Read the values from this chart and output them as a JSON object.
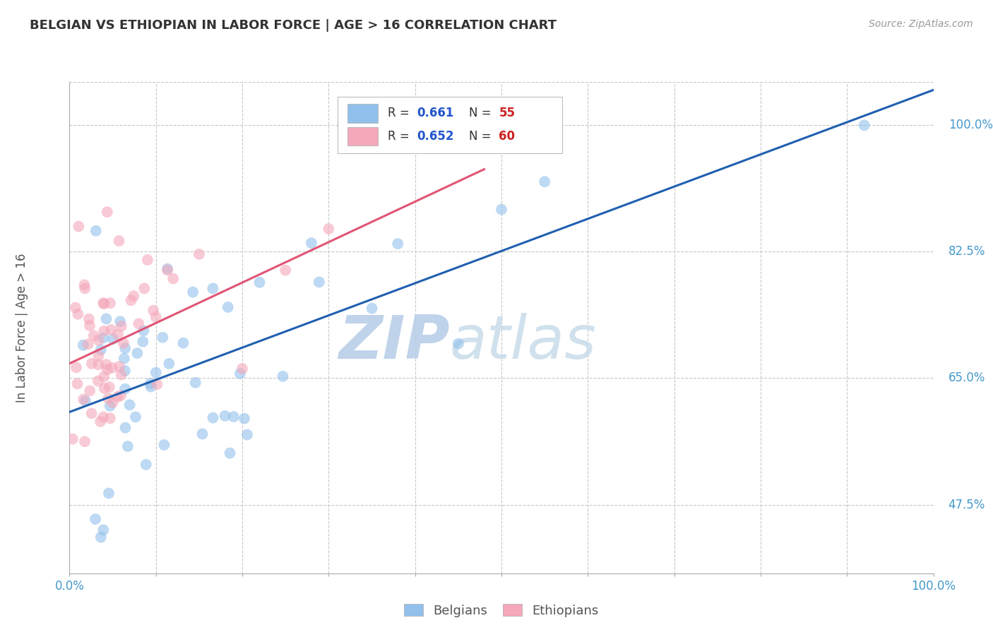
{
  "title": "BELGIAN VS ETHIOPIAN IN LABOR FORCE | AGE > 16 CORRELATION CHART",
  "source": "Source: ZipAtlas.com",
  "ylabel": "In Labor Force | Age > 16",
  "xlim": [
    0.0,
    1.0
  ],
  "ylim": [
    0.38,
    1.06
  ],
  "yticks": [
    0.475,
    0.65,
    0.825,
    1.0
  ],
  "ytick_labels": [
    "47.5%",
    "65.0%",
    "82.5%",
    "100.0%"
  ],
  "xtick_vals": [
    0.0,
    0.1,
    0.2,
    0.3,
    0.4,
    0.5,
    0.6,
    0.7,
    0.8,
    0.9,
    1.0
  ],
  "xtick_labels": [
    "0.0%",
    "",
    "",
    "",
    "",
    "",
    "",
    "",
    "",
    "",
    "100.0%"
  ],
  "belgian_R": 0.661,
  "belgian_N": 55,
  "ethiopian_R": 0.652,
  "ethiopian_N": 60,
  "belgian_color": "#92c0ec",
  "ethiopian_color": "#f4a8ba",
  "belgian_line_color": "#2060b0",
  "ethiopian_line_color": "#e05575",
  "watermark_zip": "ZIP",
  "watermark_atlas": "atlas",
  "watermark_color": "#c5d8ee",
  "background_color": "#ffffff",
  "grid_color": "#c8c8c8",
  "title_color": "#333333",
  "tick_color": "#4499cc",
  "legend_R_color": "#2255cc",
  "legend_N_color": "#cc2222"
}
